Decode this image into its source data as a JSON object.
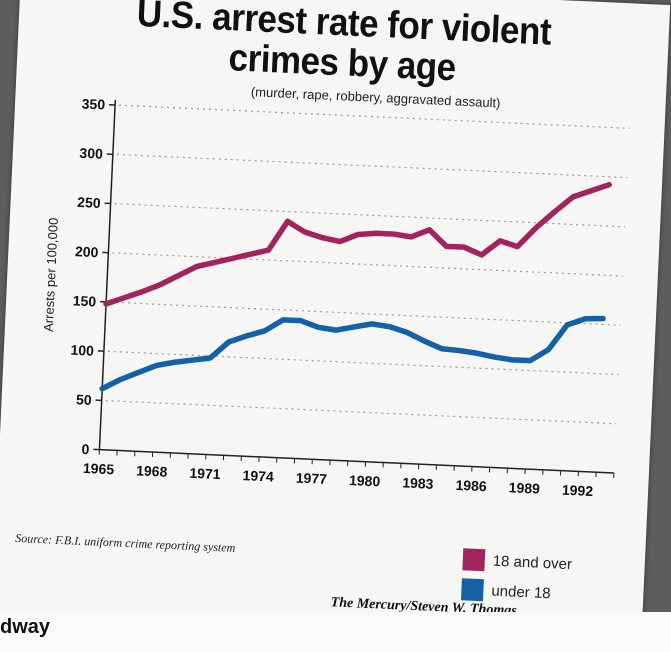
{
  "colors": {
    "adult": "#a3235c",
    "youth": "#1461a6",
    "grid": "#9a9a9a",
    "axis": "#222222"
  },
  "chart_data": {
    "type": "line",
    "title": "U.S. arrest rate for violent crimes by age",
    "title_lines": [
      "U.S. arrest rate for violent",
      "crimes by age"
    ],
    "subtitle": "(murder, rape, robbery, aggravated assault)",
    "xlabel": "",
    "ylabel": "Arrests per 100,000",
    "xlim": [
      1965,
      1994
    ],
    "ylim": [
      0,
      350
    ],
    "x_ticks": [
      "1965",
      "1968",
      "1971",
      "1974",
      "1977",
      "1980",
      "1983",
      "1986",
      "1989",
      "1992"
    ],
    "y_ticks": [
      "0",
      "50",
      "100",
      "150",
      "200",
      "250",
      "300",
      "350"
    ],
    "grid": true,
    "legend_position": "bottom-right",
    "series": [
      {
        "name": "18 and over",
        "color": "#a3235c",
        "x": [
          1965,
          1966,
          1967,
          1968,
          1969,
          1970,
          1971,
          1972,
          1973,
          1974,
          1975,
          1976,
          1977,
          1978,
          1979,
          1980,
          1981,
          1982,
          1983,
          1984,
          1985,
          1986,
          1987,
          1988,
          1989,
          1990,
          1991,
          1992,
          1993
        ],
        "values": [
          148,
          155,
          162,
          170,
          180,
          190,
          195,
          200,
          205,
          210,
          240,
          230,
          225,
          222,
          230,
          232,
          232,
          230,
          238,
          222,
          222,
          215,
          230,
          225,
          245,
          262,
          278,
          285,
          292
        ]
      },
      {
        "name": "under 18",
        "color": "#1461a6",
        "x": [
          1965,
          1966,
          1967,
          1968,
          1969,
          1970,
          1971,
          1972,
          1973,
          1974,
          1975,
          1976,
          1977,
          1978,
          1979,
          1980,
          1981,
          1982,
          1983,
          1984,
          1985,
          1986,
          1987,
          1988,
          1989,
          1990,
          1991,
          1992,
          1993
        ],
        "values": [
          62,
          72,
          80,
          88,
          92,
          95,
          98,
          115,
          122,
          128,
          140,
          140,
          134,
          132,
          136,
          140,
          138,
          133,
          125,
          118,
          117,
          115,
          112,
          110,
          110,
          122,
          148,
          155,
          156
        ]
      }
    ]
  },
  "source": "Source: F.B.I. uniform crime reporting system",
  "credit": "The Mercury/Steven W. Thomas",
  "edge_text": "dway"
}
